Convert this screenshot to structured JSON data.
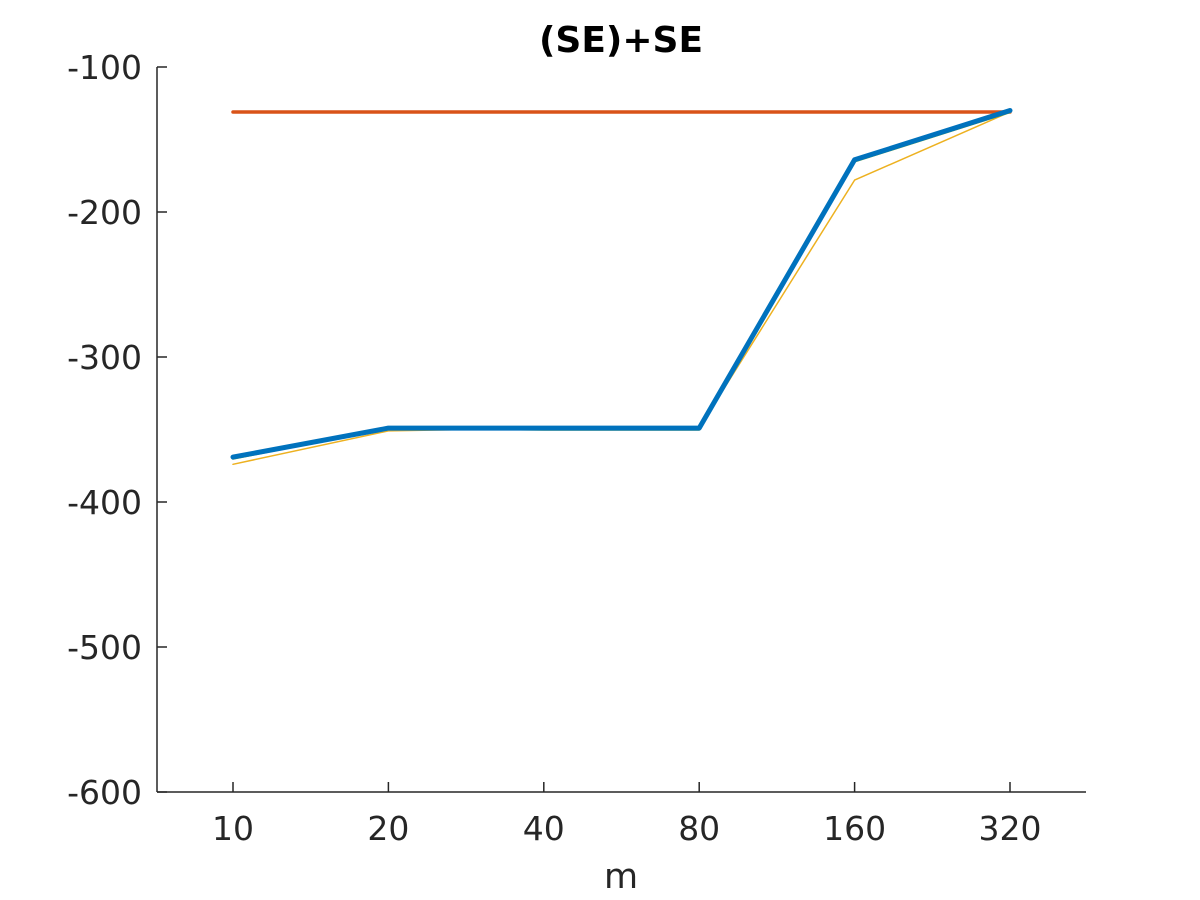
{
  "chart_data": {
    "type": "line",
    "title": "(SE)+SE",
    "xlabel": "m",
    "ylabel": "",
    "categories": [
      "10",
      "20",
      "40",
      "80",
      "160",
      "320"
    ],
    "ylim": [
      -600,
      -100
    ],
    "yticks": [
      -100,
      -200,
      -300,
      -400,
      -500,
      -600
    ],
    "grid": false,
    "legend": "none",
    "series": [
      {
        "color": "#D95319",
        "values": [
          -131,
          -131,
          -131,
          -131,
          -131,
          -131
        ]
      },
      {
        "color": "#EDB120",
        "values": [
          -374,
          -351,
          -349,
          -349,
          -178,
          -131
        ]
      },
      {
        "color": "#77AC30",
        "values": [
          -370,
          -349,
          -350,
          -350,
          -165,
          -131
        ]
      },
      {
        "color": "#0072BD",
        "values": [
          -369,
          -349,
          -349,
          -349,
          -164,
          -130
        ]
      }
    ]
  }
}
